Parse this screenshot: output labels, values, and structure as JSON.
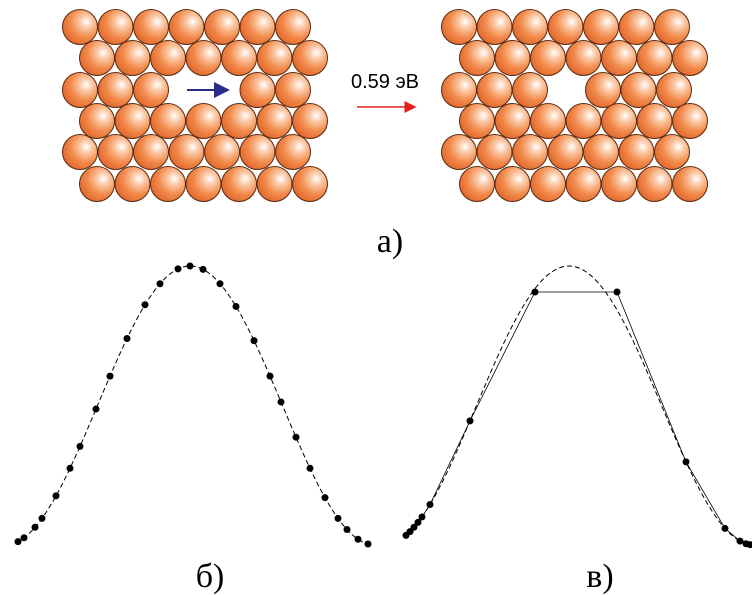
{
  "energy_label": "0.59 эВ",
  "labels": [
    "а)",
    "б)",
    "в)"
  ]
}
